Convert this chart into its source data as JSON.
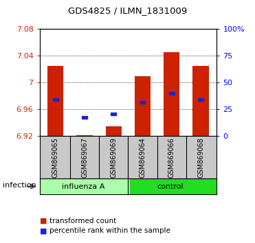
{
  "title": "GDS4825 / ILMN_1831009",
  "samples": [
    "GSM869065",
    "GSM869067",
    "GSM869069",
    "GSM869064",
    "GSM869066",
    "GSM869068"
  ],
  "ylim": [
    6.92,
    7.08
  ],
  "yticks": [
    6.92,
    6.96,
    7.0,
    7.04,
    7.08
  ],
  "ytick_labels": [
    "6.92",
    "6.96",
    "7",
    "7.04",
    "7.08"
  ],
  "y2ticks": [
    0,
    25,
    50,
    75,
    100
  ],
  "y2tick_labels": [
    "0",
    "25",
    "50",
    "75",
    "100%"
  ],
  "bar_bottoms": [
    6.92,
    6.92,
    6.92,
    6.92,
    6.92,
    6.92
  ],
  "bar_tops": [
    7.025,
    6.921,
    6.935,
    7.01,
    7.046,
    7.025
  ],
  "blue_y": [
    6.975,
    6.948,
    6.953,
    6.971,
    6.984,
    6.975
  ],
  "bar_color": "#CC2200",
  "blue_color": "#2222CC",
  "group_label": "infection",
  "group_labels": [
    "influenza A",
    "control"
  ],
  "group_colors": [
    "#BBFFBB",
    "#33DD33"
  ],
  "legend_items": [
    "transformed count",
    "percentile rank within the sample"
  ],
  "legend_colors": [
    "#CC2200",
    "#2222CC"
  ],
  "influenza_color": "#AAFFAA",
  "control_color": "#22DD22"
}
